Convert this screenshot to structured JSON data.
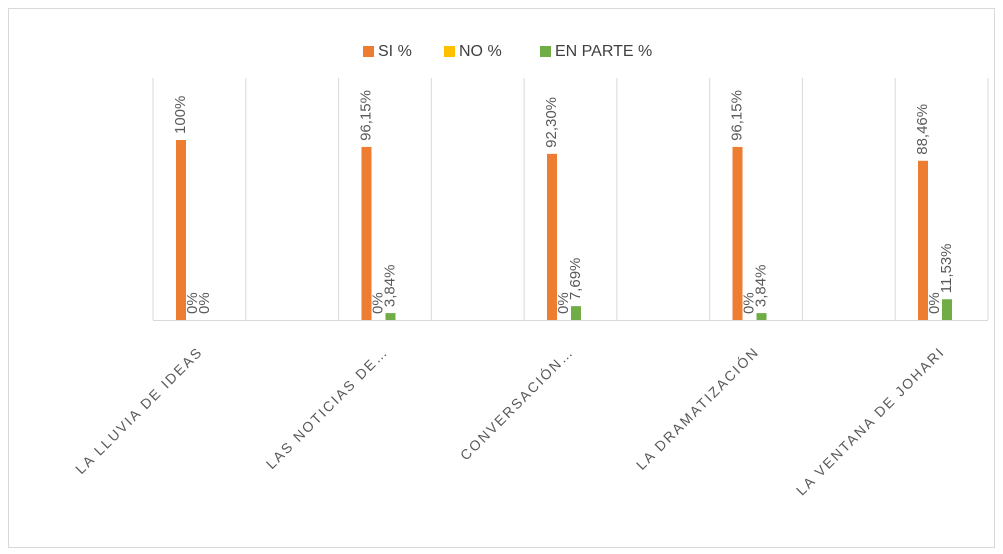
{
  "chart_data": {
    "type": "bar",
    "categories": [
      "LA LLUVIA DE IDEAS",
      "LAS NOTICIAS DE…",
      "CONVERSACIÓN…",
      "LA DRAMATIZACIÓN",
      "LA VENTANA DE JOHARI"
    ],
    "series": [
      {
        "name": "SI %",
        "color": "#ED7D31",
        "values": [
          100,
          96.15,
          92.3,
          96.15,
          88.46
        ],
        "value_labels": [
          "100%",
          "96,15%",
          "92,30%",
          "96,15%",
          "88,46%"
        ]
      },
      {
        "name": "NO %",
        "color": "#FFC000",
        "values": [
          0,
          0,
          0,
          0,
          0
        ],
        "value_labels": [
          "0%",
          "0%",
          "0%",
          "0%",
          "0%"
        ]
      },
      {
        "name": "EN PARTE %",
        "color": "#70AD47",
        "values": [
          0,
          3.84,
          7.69,
          3.84,
          11.53
        ],
        "value_labels": [
          "0%",
          "3,84%",
          "7,69%",
          "3,84%",
          "11,53%"
        ]
      }
    ],
    "ylim": [
      0,
      120
    ],
    "legend": "top"
  }
}
